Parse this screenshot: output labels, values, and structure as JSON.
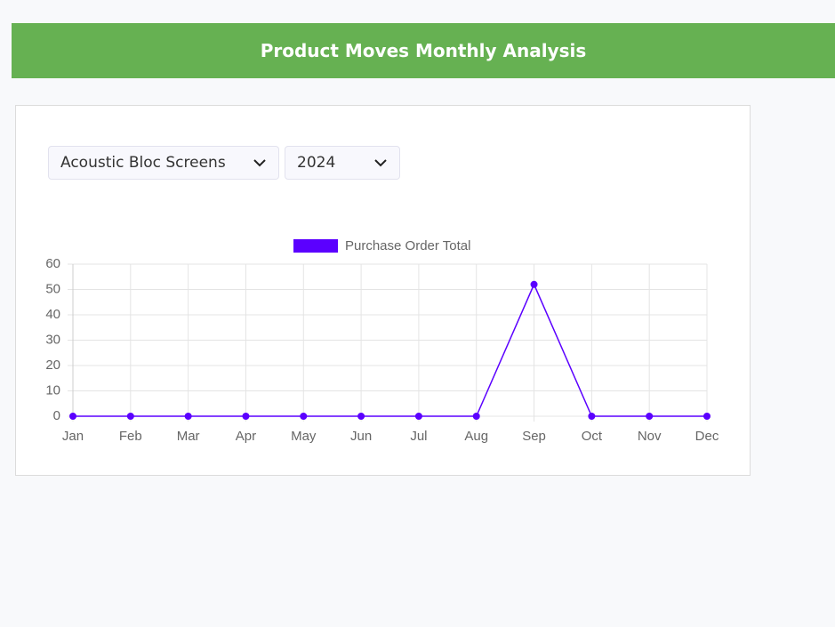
{
  "header": {
    "title": "Product Moves Monthly Analysis"
  },
  "filters": {
    "product": "Acoustic Bloc Screens",
    "year": "2024"
  },
  "chart_data": {
    "type": "line",
    "categories": [
      "Jan",
      "Feb",
      "Mar",
      "Apr",
      "May",
      "Jun",
      "Jul",
      "Aug",
      "Sep",
      "Oct",
      "Nov",
      "Dec"
    ],
    "series": [
      {
        "name": "Purchase Order Total",
        "color": "#5b00ff",
        "values": [
          0,
          0,
          0,
          0,
          0,
          0,
          0,
          0,
          52,
          0,
          0,
          0
        ]
      }
    ],
    "ylim": [
      0,
      60
    ],
    "yticks": [
      0,
      10,
      20,
      30,
      40,
      50,
      60
    ],
    "grid": true,
    "legend": "top"
  }
}
